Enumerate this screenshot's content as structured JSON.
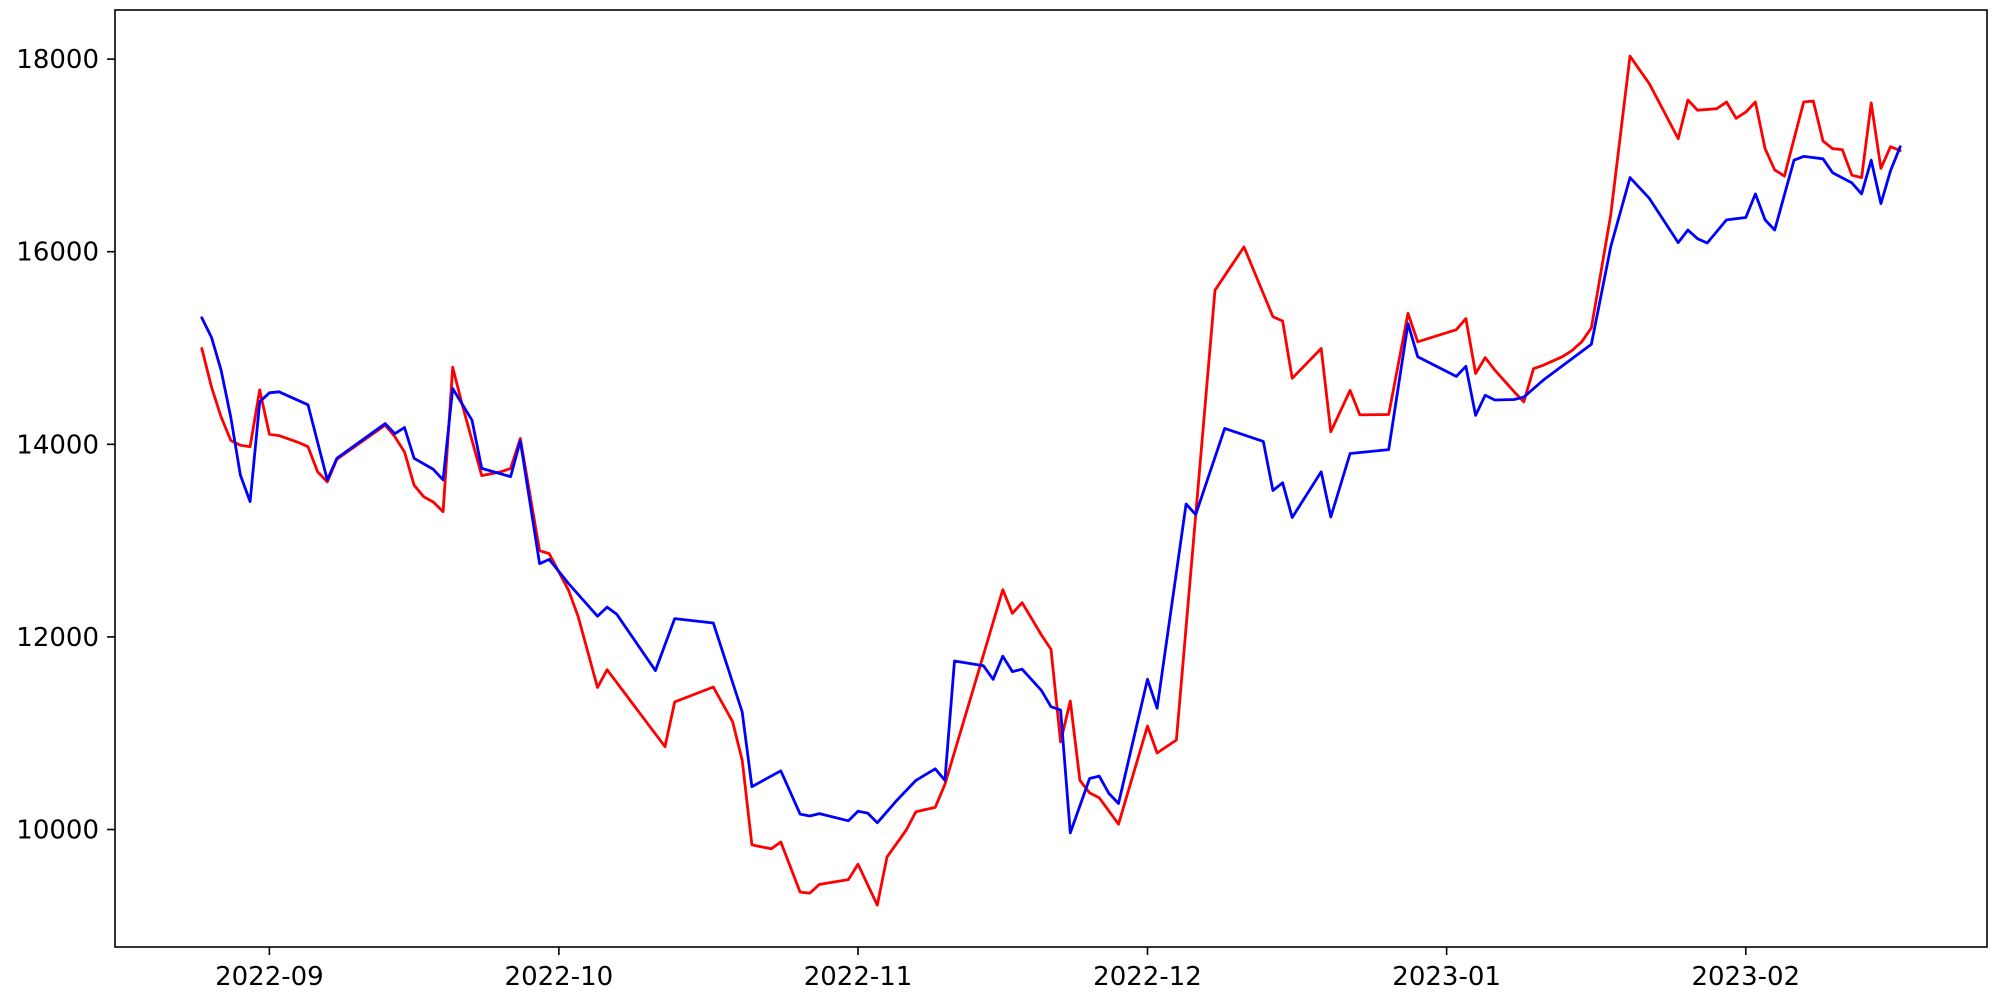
{
  "figure": {
    "background_color": "#ffffff",
    "plot_background_color": "#ffffff",
    "spine_color": "#000000"
  },
  "chart_data": {
    "type": "line",
    "title": "",
    "xlabel": "",
    "ylabel": "",
    "grid": false,
    "legend_position": "none",
    "x_axis": {
      "kind": "date",
      "xlim": [
        "2022-08-16",
        "2023-02-26"
      ],
      "ticks": [
        {
          "date": "2022-09-01",
          "label": "2022-09"
        },
        {
          "date": "2022-10-01",
          "label": "2022-10"
        },
        {
          "date": "2022-11-01",
          "label": "2022-11"
        },
        {
          "date": "2022-12-01",
          "label": "2022-12"
        },
        {
          "date": "2023-01-01",
          "label": "2023-01"
        },
        {
          "date": "2023-02-01",
          "label": "2023-02"
        }
      ]
    },
    "y_axis": {
      "ylim": [
        8780,
        18510
      ],
      "ticks": [
        10000,
        12000,
        14000,
        16000,
        18000
      ],
      "tick_labels": [
        "10000",
        "12000",
        "14000",
        "16000",
        "18000"
      ]
    },
    "series": [
      {
        "name": "red-series",
        "color": "#ff0000",
        "line_width": 2.8,
        "points": [
          [
            "2022-08-25",
            14995
          ],
          [
            "2022-08-26",
            14595
          ],
          [
            "2022-08-27",
            14285
          ],
          [
            "2022-08-28",
            14040
          ],
          [
            "2022-08-29",
            13990
          ],
          [
            "2022-08-30",
            13975
          ],
          [
            "2022-08-31",
            14565
          ],
          [
            "2022-09-01",
            14105
          ],
          [
            "2022-09-02",
            14090
          ],
          [
            "2022-09-04",
            14020
          ],
          [
            "2022-09-05",
            13975
          ],
          [
            "2022-09-06",
            13715
          ],
          [
            "2022-09-07",
            13610
          ],
          [
            "2022-09-08",
            13845
          ],
          [
            "2022-09-13",
            14200
          ],
          [
            "2022-09-14",
            14080
          ],
          [
            "2022-09-15",
            13920
          ],
          [
            "2022-09-16",
            13575
          ],
          [
            "2022-09-17",
            13455
          ],
          [
            "2022-09-18",
            13400
          ],
          [
            "2022-09-19",
            13300
          ],
          [
            "2022-09-20",
            14800
          ],
          [
            "2022-09-21",
            14405
          ],
          [
            "2022-09-23",
            13675
          ],
          [
            "2022-09-25",
            13715
          ],
          [
            "2022-09-26",
            13750
          ],
          [
            "2022-09-27",
            14060
          ],
          [
            "2022-09-29",
            12895
          ],
          [
            "2022-09-30",
            12865
          ],
          [
            "2022-10-02",
            12485
          ],
          [
            "2022-10-03",
            12210
          ],
          [
            "2022-10-05",
            11475
          ],
          [
            "2022-10-06",
            11660
          ],
          [
            "2022-10-12",
            10860
          ],
          [
            "2022-10-13",
            11325
          ],
          [
            "2022-10-17",
            11480
          ],
          [
            "2022-10-19",
            11120
          ],
          [
            "2022-10-20",
            10720
          ],
          [
            "2022-10-21",
            9840
          ],
          [
            "2022-10-23",
            9800
          ],
          [
            "2022-10-24",
            9870
          ],
          [
            "2022-10-26",
            9350
          ],
          [
            "2022-10-27",
            9340
          ],
          [
            "2022-10-28",
            9430
          ],
          [
            "2022-10-31",
            9480
          ],
          [
            "2022-11-01",
            9640
          ],
          [
            "2022-11-03",
            9215
          ],
          [
            "2022-11-04",
            9715
          ],
          [
            "2022-11-06",
            9995
          ],
          [
            "2022-11-07",
            10185
          ],
          [
            "2022-11-09",
            10230
          ],
          [
            "2022-11-10",
            10470
          ],
          [
            "2022-11-14",
            11815
          ],
          [
            "2022-11-16",
            12490
          ],
          [
            "2022-11-17",
            12245
          ],
          [
            "2022-11-18",
            12355
          ],
          [
            "2022-11-19",
            12190
          ],
          [
            "2022-11-20",
            12020
          ],
          [
            "2022-11-21",
            11870
          ],
          [
            "2022-11-22",
            10910
          ],
          [
            "2022-11-23",
            11335
          ],
          [
            "2022-11-24",
            10510
          ],
          [
            "2022-11-25",
            10380
          ],
          [
            "2022-11-26",
            10330
          ],
          [
            "2022-11-28",
            10055
          ],
          [
            "2022-12-01",
            11075
          ],
          [
            "2022-12-02",
            10795
          ],
          [
            "2022-12-04",
            10930
          ],
          [
            "2022-12-08",
            15600
          ],
          [
            "2022-12-11",
            16050
          ],
          [
            "2022-12-14",
            15325
          ],
          [
            "2022-12-15",
            15280
          ],
          [
            "2022-12-16",
            14685
          ],
          [
            "2022-12-19",
            14995
          ],
          [
            "2022-12-20",
            14130
          ],
          [
            "2022-12-22",
            14560
          ],
          [
            "2022-12-23",
            14305
          ],
          [
            "2022-12-26",
            14310
          ],
          [
            "2022-12-28",
            15360
          ],
          [
            "2022-12-29",
            15065
          ],
          [
            "2023-01-02",
            15190
          ],
          [
            "2023-01-03",
            15305
          ],
          [
            "2023-01-04",
            14735
          ],
          [
            "2023-01-05",
            14900
          ],
          [
            "2023-01-06",
            14770
          ],
          [
            "2023-01-08",
            14545
          ],
          [
            "2023-01-09",
            14440
          ],
          [
            "2023-01-10",
            14785
          ],
          [
            "2023-01-11",
            14820
          ],
          [
            "2023-01-13",
            14910
          ],
          [
            "2023-01-14",
            14975
          ],
          [
            "2023-01-15",
            15065
          ],
          [
            "2023-01-16",
            15210
          ],
          [
            "2023-01-18",
            16380
          ],
          [
            "2023-01-20",
            18030
          ],
          [
            "2023-01-22",
            17745
          ],
          [
            "2023-01-25",
            17175
          ],
          [
            "2023-01-26",
            17575
          ],
          [
            "2023-01-27",
            17470
          ],
          [
            "2023-01-29",
            17485
          ],
          [
            "2023-01-30",
            17555
          ],
          [
            "2023-01-31",
            17385
          ],
          [
            "2023-02-01",
            17450
          ],
          [
            "2023-02-02",
            17555
          ],
          [
            "2023-02-03",
            17070
          ],
          [
            "2023-02-04",
            16850
          ],
          [
            "2023-02-05",
            16785
          ],
          [
            "2023-02-06",
            17170
          ],
          [
            "2023-02-07",
            17555
          ],
          [
            "2023-02-08",
            17565
          ],
          [
            "2023-02-09",
            17150
          ],
          [
            "2023-02-10",
            17070
          ],
          [
            "2023-02-11",
            17060
          ],
          [
            "2023-02-12",
            16795
          ],
          [
            "2023-02-13",
            16770
          ],
          [
            "2023-02-14",
            17545
          ],
          [
            "2023-02-15",
            16865
          ],
          [
            "2023-02-16",
            17090
          ],
          [
            "2023-02-17",
            17050
          ]
        ]
      },
      {
        "name": "blue-series",
        "color": "#0000ff",
        "line_width": 2.8,
        "points": [
          [
            "2022-08-25",
            15315
          ],
          [
            "2022-08-26",
            15110
          ],
          [
            "2022-08-27",
            14770
          ],
          [
            "2022-08-28",
            14280
          ],
          [
            "2022-08-29",
            13680
          ],
          [
            "2022-08-30",
            13405
          ],
          [
            "2022-08-31",
            14440
          ],
          [
            "2022-09-01",
            14535
          ],
          [
            "2022-09-02",
            14545
          ],
          [
            "2022-09-05",
            14410
          ],
          [
            "2022-09-07",
            13630
          ],
          [
            "2022-09-08",
            13855
          ],
          [
            "2022-09-13",
            14215
          ],
          [
            "2022-09-14",
            14110
          ],
          [
            "2022-09-15",
            14175
          ],
          [
            "2022-09-16",
            13855
          ],
          [
            "2022-09-18",
            13740
          ],
          [
            "2022-09-19",
            13630
          ],
          [
            "2022-09-20",
            14580
          ],
          [
            "2022-09-22",
            14250
          ],
          [
            "2022-09-23",
            13750
          ],
          [
            "2022-09-26",
            13665
          ],
          [
            "2022-09-27",
            14035
          ],
          [
            "2022-09-29",
            12760
          ],
          [
            "2022-09-30",
            12805
          ],
          [
            "2022-10-02",
            12555
          ],
          [
            "2022-10-05",
            12215
          ],
          [
            "2022-10-06",
            12310
          ],
          [
            "2022-10-07",
            12235
          ],
          [
            "2022-10-11",
            11650
          ],
          [
            "2022-10-13",
            12190
          ],
          [
            "2022-10-17",
            12145
          ],
          [
            "2022-10-20",
            11220
          ],
          [
            "2022-10-21",
            10445
          ],
          [
            "2022-10-24",
            10610
          ],
          [
            "2022-10-26",
            10160
          ],
          [
            "2022-10-27",
            10140
          ],
          [
            "2022-10-28",
            10165
          ],
          [
            "2022-10-31",
            10090
          ],
          [
            "2022-11-01",
            10190
          ],
          [
            "2022-11-02",
            10170
          ],
          [
            "2022-11-03",
            10070
          ],
          [
            "2022-11-05",
            10300
          ],
          [
            "2022-11-07",
            10510
          ],
          [
            "2022-11-09",
            10630
          ],
          [
            "2022-11-10",
            10510
          ],
          [
            "2022-11-11",
            11750
          ],
          [
            "2022-11-14",
            11700
          ],
          [
            "2022-11-15",
            11560
          ],
          [
            "2022-11-16",
            11800
          ],
          [
            "2022-11-17",
            11640
          ],
          [
            "2022-11-18",
            11665
          ],
          [
            "2022-11-20",
            11445
          ],
          [
            "2022-11-21",
            11275
          ],
          [
            "2022-11-22",
            11240
          ],
          [
            "2022-11-23",
            9965
          ],
          [
            "2022-11-25",
            10530
          ],
          [
            "2022-11-26",
            10555
          ],
          [
            "2022-11-27",
            10375
          ],
          [
            "2022-11-28",
            10270
          ],
          [
            "2022-12-01",
            11560
          ],
          [
            "2022-12-02",
            11260
          ],
          [
            "2022-12-05",
            13380
          ],
          [
            "2022-12-06",
            13270
          ],
          [
            "2022-12-09",
            14165
          ],
          [
            "2022-12-13",
            14030
          ],
          [
            "2022-12-14",
            13520
          ],
          [
            "2022-12-15",
            13600
          ],
          [
            "2022-12-16",
            13240
          ],
          [
            "2022-12-19",
            13715
          ],
          [
            "2022-12-20",
            13245
          ],
          [
            "2022-12-22",
            13905
          ],
          [
            "2022-12-26",
            13945
          ],
          [
            "2022-12-28",
            15255
          ],
          [
            "2022-12-29",
            14910
          ],
          [
            "2023-01-02",
            14705
          ],
          [
            "2023-01-03",
            14810
          ],
          [
            "2023-01-04",
            14300
          ],
          [
            "2023-01-05",
            14510
          ],
          [
            "2023-01-06",
            14460
          ],
          [
            "2023-01-08",
            14465
          ],
          [
            "2023-01-09",
            14490
          ],
          [
            "2023-01-11",
            14665
          ],
          [
            "2023-01-14",
            14890
          ],
          [
            "2023-01-16",
            15040
          ],
          [
            "2023-01-18",
            16050
          ],
          [
            "2023-01-20",
            16770
          ],
          [
            "2023-01-22",
            16555
          ],
          [
            "2023-01-25",
            16095
          ],
          [
            "2023-01-26",
            16225
          ],
          [
            "2023-01-27",
            16135
          ],
          [
            "2023-01-28",
            16090
          ],
          [
            "2023-01-30",
            16330
          ],
          [
            "2023-02-01",
            16355
          ],
          [
            "2023-02-02",
            16600
          ],
          [
            "2023-02-03",
            16330
          ],
          [
            "2023-02-04",
            16225
          ],
          [
            "2023-02-06",
            16950
          ],
          [
            "2023-02-07",
            16990
          ],
          [
            "2023-02-09",
            16965
          ],
          [
            "2023-02-10",
            16820
          ],
          [
            "2023-02-12",
            16715
          ],
          [
            "2023-02-13",
            16600
          ],
          [
            "2023-02-14",
            16950
          ],
          [
            "2023-02-15",
            16500
          ],
          [
            "2023-02-16",
            16840
          ],
          [
            "2023-02-17",
            17090
          ]
        ]
      }
    ]
  }
}
